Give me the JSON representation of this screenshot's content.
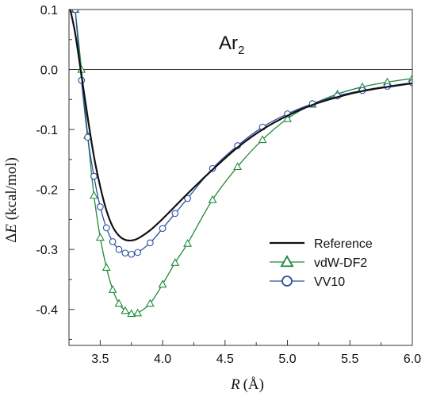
{
  "chart_data": {
    "type": "line",
    "annotation": {
      "main": "Ar",
      "sub": "2"
    },
    "xlabel": {
      "var": "R",
      "unit": "(Å)"
    },
    "ylabel": {
      "prefix": "Δ",
      "var": "E",
      "unit": " (kcal/mol)"
    },
    "xlim": [
      3.25,
      6.0
    ],
    "ylim": [
      -0.46,
      0.1
    ],
    "x_ticks": [
      3.5,
      4.0,
      4.5,
      5.0,
      5.5,
      6.0
    ],
    "x_tick_labels": [
      "3.5",
      "4.0",
      "4.5",
      "5.0",
      "5.5",
      "6.0"
    ],
    "y_ticks": [
      0.1,
      0.0,
      -0.1,
      -0.2,
      -0.3,
      -0.4
    ],
    "y_tick_labels": [
      "0.1",
      "0.0",
      "-0.1",
      "-0.2",
      "-0.3",
      "-0.4"
    ],
    "zero_line": 0.0,
    "legend_position": "lower-right",
    "series": [
      {
        "name": "Reference",
        "color": "#111111",
        "marker": "none",
        "x": [
          3.26,
          3.3,
          3.35,
          3.4,
          3.45,
          3.5,
          3.55,
          3.6,
          3.65,
          3.7,
          3.75,
          3.8,
          3.9,
          4.0,
          4.2,
          4.4,
          4.6,
          4.8,
          5.0,
          5.2,
          5.4,
          5.6,
          5.8,
          6.0
        ],
        "y": [
          0.1,
          0.06,
          -0.01,
          -0.08,
          -0.145,
          -0.195,
          -0.235,
          -0.262,
          -0.277,
          -0.284,
          -0.285,
          -0.282,
          -0.268,
          -0.249,
          -0.207,
          -0.167,
          -0.13,
          -0.1,
          -0.077,
          -0.059,
          -0.046,
          -0.036,
          -0.029,
          -0.023
        ]
      },
      {
        "name": "vdW-DF2",
        "color": "#1f8a3a",
        "marker": "triangle",
        "x": [
          3.3,
          3.35,
          3.4,
          3.45,
          3.5,
          3.55,
          3.6,
          3.65,
          3.7,
          3.75,
          3.8,
          3.9,
          4.0,
          4.1,
          4.2,
          4.4,
          4.6,
          4.8,
          5.0,
          5.2,
          5.4,
          5.6,
          5.8,
          6.0
        ],
        "y": [
          0.1,
          0.0,
          -0.11,
          -0.21,
          -0.28,
          -0.33,
          -0.367,
          -0.39,
          -0.402,
          -0.407,
          -0.406,
          -0.39,
          -0.358,
          -0.322,
          -0.29,
          -0.217,
          -0.162,
          -0.117,
          -0.082,
          -0.058,
          -0.041,
          -0.029,
          -0.021,
          -0.015
        ]
      },
      {
        "name": "VV10",
        "color": "#2b4fa3",
        "marker": "circle",
        "x": [
          3.3,
          3.35,
          3.4,
          3.45,
          3.5,
          3.55,
          3.6,
          3.65,
          3.7,
          3.75,
          3.8,
          3.9,
          4.0,
          4.1,
          4.2,
          4.4,
          4.6,
          4.8,
          5.0,
          5.2,
          5.4,
          5.6,
          5.8,
          6.0
        ],
        "y": [
          0.1,
          -0.018,
          -0.113,
          -0.178,
          -0.229,
          -0.264,
          -0.287,
          -0.3,
          -0.306,
          -0.308,
          -0.305,
          -0.289,
          -0.265,
          -0.24,
          -0.215,
          -0.165,
          -0.127,
          -0.096,
          -0.074,
          -0.057,
          -0.044,
          -0.035,
          -0.028,
          -0.022
        ]
      }
    ]
  }
}
